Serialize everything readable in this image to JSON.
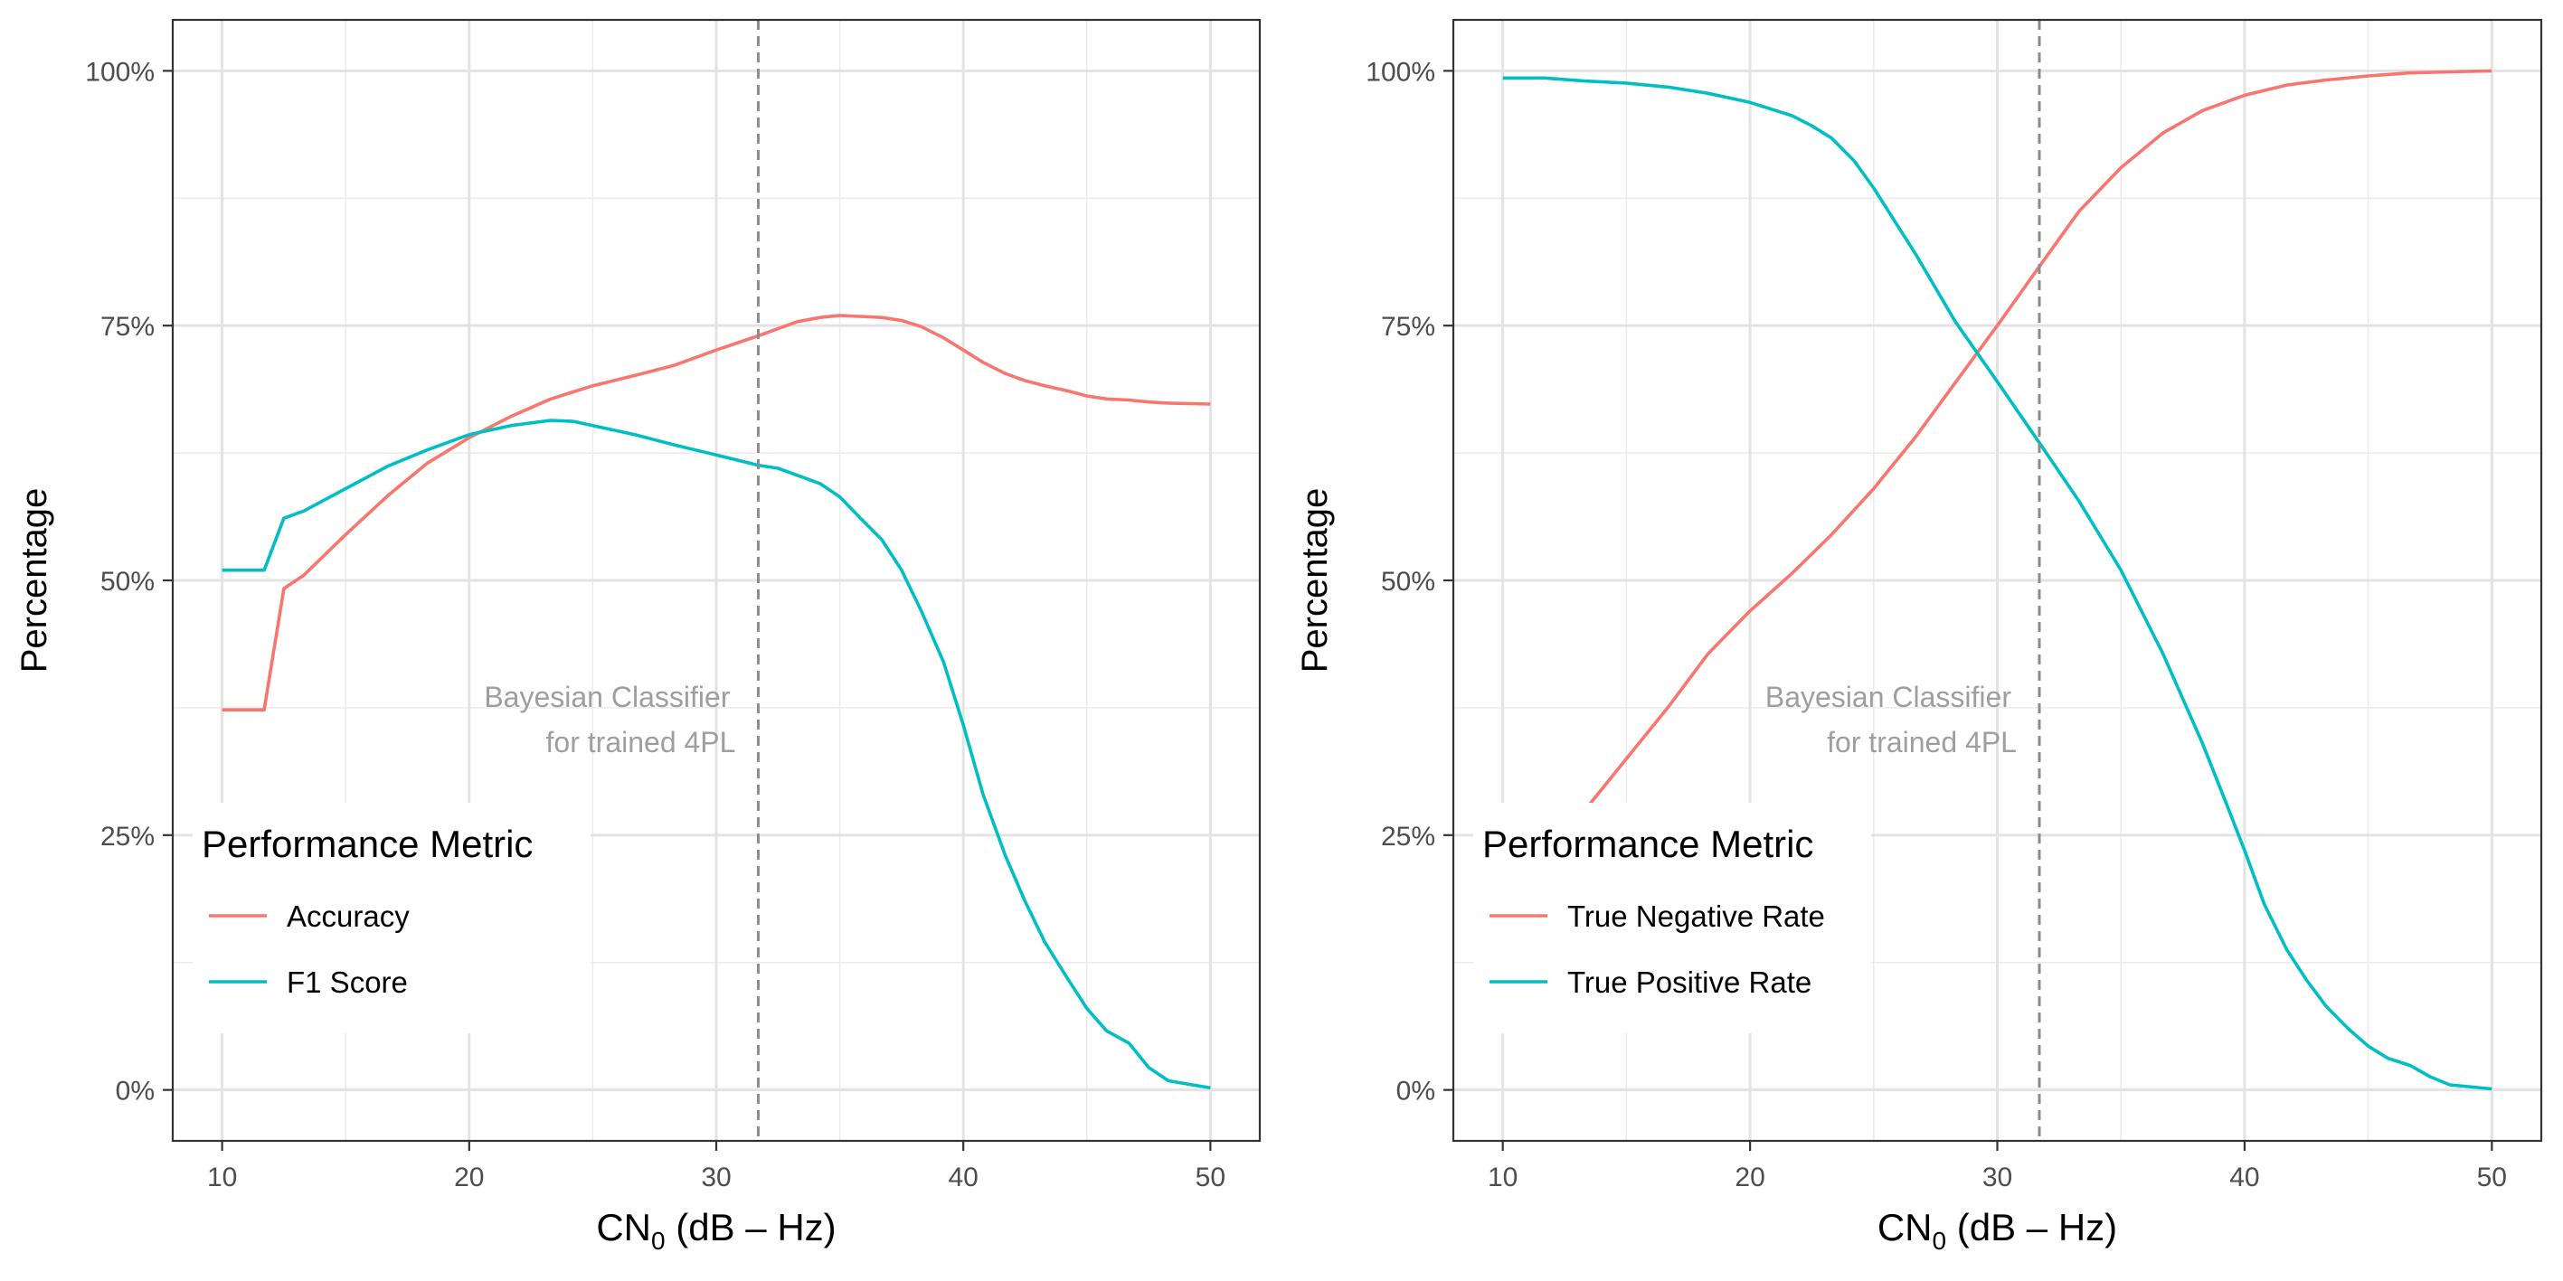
{
  "chart_data": [
    {
      "type": "line",
      "xlabel_main": "CN",
      "xlabel_sub": "0",
      "xlabel_unit": "dB – Hz",
      "ylabel": "Percentage",
      "xlim": [
        8,
        52
      ],
      "ylim": [
        -0.05,
        1.05
      ],
      "x_ticks": [
        10,
        20,
        30,
        40,
        50
      ],
      "x_tick_labels": [
        "10",
        "20",
        "30",
        "40",
        "50"
      ],
      "y_ticks": [
        0,
        0.25,
        0.5,
        0.75,
        1.0
      ],
      "y_tick_labels": [
        "0%",
        "25%",
        "50%",
        "75%",
        "100%"
      ],
      "vline_x": 31.7,
      "annotation": [
        "Bayesian Classifier",
        "for trained 4PL"
      ],
      "legend_title": "Performance Metric",
      "legend_position": "bottom-left",
      "series": [
        {
          "name": "Accuracy",
          "color": "#F8766D",
          "x": [
            10,
            11.7,
            12.5,
            13.3,
            15,
            16.7,
            18.3,
            20,
            21.7,
            23.3,
            25,
            26.7,
            28.3,
            30,
            31.7,
            32.5,
            33.3,
            34.2,
            35,
            35.8,
            36.7,
            37.5,
            38.3,
            39.2,
            40,
            40.8,
            41.7,
            42.5,
            43.3,
            44.2,
            45,
            45.8,
            46.7,
            47.5,
            48.3,
            50
          ],
          "values": [
            0.373,
            0.373,
            0.492,
            0.505,
            0.545,
            0.583,
            0.615,
            0.64,
            0.661,
            0.678,
            0.691,
            0.701,
            0.711,
            0.726,
            0.74,
            0.747,
            0.754,
            0.758,
            0.76,
            0.759,
            0.758,
            0.755,
            0.749,
            0.738,
            0.726,
            0.714,
            0.703,
            0.696,
            0.691,
            0.686,
            0.681,
            0.678,
            0.677,
            0.675,
            0.674,
            0.673
          ]
        },
        {
          "name": "F1 Score",
          "color": "#00BFC4",
          "x": [
            10,
            11.7,
            12.5,
            13.3,
            15,
            16.7,
            18.3,
            20,
            21.7,
            23.3,
            24.2,
            25,
            26.7,
            28.3,
            30,
            31.7,
            32.5,
            33.3,
            34.2,
            35,
            35.8,
            36.7,
            37.5,
            38.3,
            39.2,
            40,
            40.8,
            41.7,
            42.5,
            43.3,
            44.2,
            45,
            45.8,
            46.7,
            47.5,
            48.3,
            50
          ],
          "values": [
            0.51,
            0.51,
            0.561,
            0.568,
            0.59,
            0.612,
            0.628,
            0.643,
            0.652,
            0.657,
            0.656,
            0.652,
            0.643,
            0.633,
            0.623,
            0.613,
            0.61,
            0.603,
            0.595,
            0.582,
            0.562,
            0.54,
            0.51,
            0.47,
            0.42,
            0.358,
            0.29,
            0.23,
            0.185,
            0.145,
            0.11,
            0.08,
            0.058,
            0.046,
            0.022,
            0.009,
            0.002
          ]
        }
      ]
    },
    {
      "type": "line",
      "xlabel_main": "CN",
      "xlabel_sub": "0",
      "xlabel_unit": "dB – Hz",
      "ylabel": "Percentage",
      "xlim": [
        8,
        52
      ],
      "ylim": [
        -0.05,
        1.05
      ],
      "x_ticks": [
        10,
        20,
        30,
        40,
        50
      ],
      "x_tick_labels": [
        "10",
        "20",
        "30",
        "40",
        "50"
      ],
      "y_ticks": [
        0,
        0.25,
        0.5,
        0.75,
        1.0
      ],
      "y_tick_labels": [
        "0%",
        "25%",
        "50%",
        "75%",
        "100%"
      ],
      "vline_x": 31.7,
      "annotation": [
        "Bayesian Classifier",
        "for trained 4PL"
      ],
      "legend_title": "Performance Metric",
      "legend_position": "bottom-left",
      "series": [
        {
          "name": "True Negative Rate",
          "color": "#F8766D",
          "x": [
            13.5,
            15,
            16.7,
            18.3,
            20,
            21.7,
            23.3,
            25,
            26.7,
            28.3,
            30,
            31.7,
            33.3,
            35,
            36.7,
            38.3,
            40,
            41.7,
            43.3,
            45,
            46.7,
            48.3,
            50
          ],
          "values": [
            0.28,
            0.325,
            0.376,
            0.428,
            0.47,
            0.507,
            0.545,
            0.59,
            0.641,
            0.694,
            0.75,
            0.808,
            0.862,
            0.905,
            0.939,
            0.961,
            0.976,
            0.986,
            0.991,
            0.995,
            0.998,
            0.999,
            1.0
          ]
        },
        {
          "name": "True Positive Rate",
          "color": "#00BFC4",
          "x": [
            10,
            11.7,
            13.3,
            15,
            16.7,
            18.3,
            20,
            21.7,
            22.5,
            23.3,
            24.2,
            25,
            26.7,
            28.3,
            30,
            31.7,
            33.3,
            35,
            36.7,
            38.3,
            39.2,
            40,
            40.8,
            41.7,
            42.5,
            43.3,
            44.2,
            45,
            45.8,
            46.7,
            47.5,
            48.3,
            50
          ],
          "values": [
            0.993,
            0.993,
            0.99,
            0.988,
            0.984,
            0.978,
            0.969,
            0.956,
            0.946,
            0.934,
            0.912,
            0.885,
            0.82,
            0.754,
            0.695,
            0.635,
            0.578,
            0.51,
            0.428,
            0.34,
            0.285,
            0.235,
            0.182,
            0.138,
            0.108,
            0.082,
            0.06,
            0.043,
            0.031,
            0.024,
            0.013,
            0.005,
            0.001
          ]
        }
      ]
    }
  ]
}
